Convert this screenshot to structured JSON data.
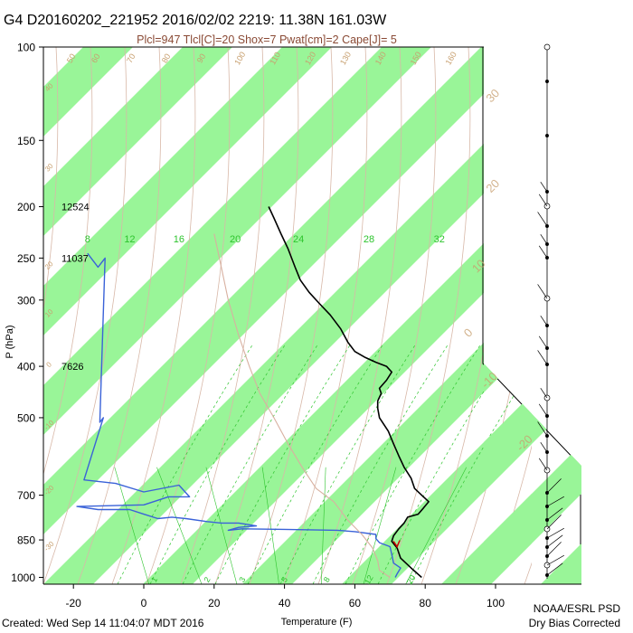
{
  "title": "G4 D20160202_221952 2016/02/02 2219: 11.38N 161.03W",
  "subtitle": "Plcl=947 Tlcl[C]=20 Shox=7 Pwat[cm]=2 Cape[J]= 5",
  "footer_left": "Created: Wed Sep 14 11:04:07 MDT 2016",
  "footer_right_1": "NOAA/ESRL PSD",
  "footer_right_2": "Dry Bias Corrected",
  "colors": {
    "band_fill": "#99f598",
    "temperature": "#000000",
    "dewpoint": "#3a62d8",
    "lcl_mark": "#cc0000",
    "dry_adiabat": "#d8b8a8",
    "moist_adiabat": "#c8a070",
    "mixing_ratio": "#2dc42d",
    "isotherm_label": "#c8a070",
    "parcel": "#d8b0a0"
  },
  "chart_data": {
    "type": "line",
    "xlabel": "Temperature (F)",
    "ylabel": "P (hPa)",
    "xlim": [
      -28,
      120
    ],
    "ylim": [
      1030,
      100
    ],
    "y_scale": "log",
    "x_ticks": [
      "-20",
      "0",
      "20",
      "40",
      "60",
      "80",
      "100"
    ],
    "x_tick_values": [
      -20,
      0,
      20,
      40,
      60,
      80,
      100
    ],
    "y_ticks": [
      "100",
      "150",
      "200",
      "250",
      "300",
      "400",
      "500",
      "700",
      "850",
      "1000"
    ],
    "y_tick_values": [
      100,
      150,
      200,
      250,
      300,
      400,
      500,
      700,
      850,
      1000
    ],
    "grid": false,
    "height_labels": [
      {
        "p": 200,
        "text": "12524"
      },
      {
        "p": 250,
        "text": "11037"
      },
      {
        "p": 400,
        "text": "7626"
      }
    ],
    "mixing_ratio_labels": [
      "8",
      "12",
      "16",
      "20",
      "24",
      "28",
      "32"
    ],
    "mixing_ratio_label_x": [
      -16,
      -4,
      10,
      26,
      44,
      64,
      84
    ],
    "mixing_ratio_label_p": 230,
    "bottom_mixing_labels": [
      "1",
      "2",
      "3",
      "5",
      "8",
      "12",
      "20"
    ],
    "bottom_mixing_x": [
      3,
      18,
      28,
      40,
      52,
      64,
      76
    ],
    "bottom_mixing_p": 1010,
    "isotherm_labels_top": [
      "50",
      "60",
      "70",
      "80",
      "90",
      "100",
      "110",
      "120",
      "130",
      "140",
      "150",
      "160"
    ],
    "isotherm_labels_top_x": [
      -20,
      -13,
      -3,
      7,
      17,
      28,
      38,
      48,
      58,
      68,
      78,
      88
    ],
    "isotherm_labels_right": [
      "30",
      "20",
      "10",
      "0",
      "-10",
      "-20"
    ],
    "isotherm_labels_right_x": [
      100,
      100,
      96,
      93,
      99,
      109
    ],
    "isotherm_labels_right_p": [
      125,
      185,
      262,
      350,
      430,
      565
    ],
    "isotherm_labels_left": [
      "40",
      "30",
      "20",
      "10",
      "0",
      "-10",
      "-20",
      "-30"
    ],
    "isotherm_labels_left_p": [
      120,
      170,
      260,
      320,
      400,
      520,
      690,
      880
    ],
    "series": [
      {
        "name": "Temperature",
        "points": [
          [
            35.5,
            200
          ],
          [
            37,
            210
          ],
          [
            39,
            225
          ],
          [
            41,
            240
          ],
          [
            43,
            260
          ],
          [
            44.5,
            275
          ],
          [
            47,
            290
          ],
          [
            50,
            305
          ],
          [
            53,
            320
          ],
          [
            56,
            340
          ],
          [
            58,
            360
          ],
          [
            60,
            375
          ],
          [
            63,
            385
          ],
          [
            66,
            393
          ],
          [
            69,
            400
          ],
          [
            70.5,
            410
          ],
          [
            69,
            425
          ],
          [
            67,
            440
          ],
          [
            67.5,
            450
          ],
          [
            66.5,
            465
          ],
          [
            66.5,
            480
          ],
          [
            67,
            500
          ],
          [
            69.5,
            530
          ],
          [
            71,
            560
          ],
          [
            72.5,
            590
          ],
          [
            74,
            620
          ],
          [
            76,
            650
          ],
          [
            77,
            680
          ],
          [
            79,
            700
          ],
          [
            81,
            720
          ],
          [
            79.5,
            740
          ],
          [
            78,
            760
          ],
          [
            75,
            770
          ],
          [
            74,
            790
          ],
          [
            72.5,
            810
          ],
          [
            71,
            835
          ],
          [
            70.5,
            855
          ],
          [
            72,
            880
          ],
          [
            73,
            920
          ],
          [
            76,
            960
          ],
          [
            79,
            1000
          ]
        ]
      },
      {
        "name": "Dewpoint",
        "points": [
          [
            -16,
            245
          ],
          [
            -13,
            260
          ],
          [
            -11,
            250
          ],
          [
            -12.5,
            510
          ],
          [
            -11.5,
            500
          ],
          [
            -17,
            655
          ],
          [
            -8,
            665
          ],
          [
            0,
            690
          ],
          [
            10,
            670
          ],
          [
            13,
            705
          ],
          [
            7,
            705
          ],
          [
            0,
            730
          ],
          [
            -19,
            735
          ],
          [
            -13,
            745
          ],
          [
            -4,
            745
          ],
          [
            0,
            760
          ],
          [
            4,
            775
          ],
          [
            8,
            770
          ],
          [
            12,
            775
          ],
          [
            18,
            785
          ],
          [
            22,
            790
          ],
          [
            27,
            790
          ],
          [
            32,
            800
          ],
          [
            27,
            805
          ],
          [
            24,
            815
          ],
          [
            28,
            810
          ],
          [
            40,
            812
          ],
          [
            55,
            815
          ],
          [
            60,
            820
          ],
          [
            66,
            830
          ],
          [
            66,
            845
          ],
          [
            67,
            860
          ],
          [
            70,
            875
          ],
          [
            70.5,
            905
          ],
          [
            71,
            940
          ],
          [
            73,
            960
          ],
          [
            72,
            985
          ],
          [
            71.5,
            1000
          ]
        ]
      },
      {
        "name": "Parcel",
        "points": [
          [
            20,
            225
          ],
          [
            21.5,
            250
          ],
          [
            24,
            300
          ],
          [
            27,
            350
          ],
          [
            30,
            400
          ],
          [
            33,
            450
          ],
          [
            37,
            500
          ],
          [
            41,
            560
          ],
          [
            45,
            620
          ],
          [
            49,
            680
          ],
          [
            54,
            720
          ],
          [
            58,
            780
          ],
          [
            62,
            830
          ],
          [
            65,
            880
          ],
          [
            66.5,
            930
          ],
          [
            67,
            970
          ],
          [
            70,
            1000
          ]
        ]
      }
    ],
    "lcl_marker": {
      "x": 72,
      "p": 865
    }
  }
}
